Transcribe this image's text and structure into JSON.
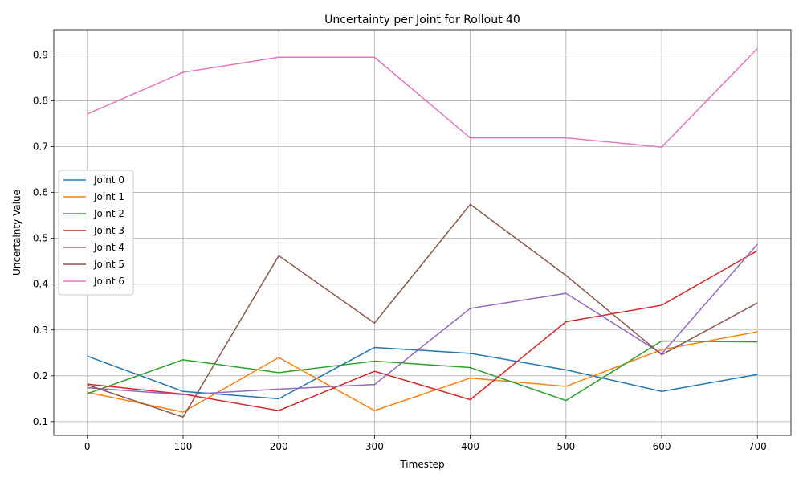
{
  "chart_data": {
    "type": "line",
    "title": "Uncertainty per Joint for Rollout 40",
    "xlabel": "Timestep",
    "ylabel": "Uncertainty Value",
    "x": [
      0,
      100,
      200,
      300,
      400,
      500,
      600,
      700
    ],
    "xlim": [
      -35,
      735
    ],
    "ylim": [
      0.07,
      0.955
    ],
    "xticks": [
      0,
      100,
      200,
      300,
      400,
      500,
      600,
      700
    ],
    "yticks": [
      0.1,
      0.2,
      0.3,
      0.4,
      0.5,
      0.6,
      0.7,
      0.8,
      0.9
    ],
    "ytick_labels": [
      "0.1",
      "0.2",
      "0.3",
      "0.4",
      "0.5",
      "0.6",
      "0.7",
      "0.8",
      "0.9"
    ],
    "grid": true,
    "legend_position": "center-left",
    "series": [
      {
        "name": "Joint 0",
        "color": "#1f77b4",
        "values": [
          0.243,
          0.166,
          0.15,
          0.262,
          0.249,
          0.213,
          0.166,
          0.203
        ]
      },
      {
        "name": "Joint 1",
        "color": "#ff7f0e",
        "values": [
          0.164,
          0.121,
          0.24,
          0.124,
          0.195,
          0.177,
          0.257,
          0.296
        ]
      },
      {
        "name": "Joint 2",
        "color": "#2ca02c",
        "values": [
          0.161,
          0.235,
          0.207,
          0.232,
          0.218,
          0.146,
          0.276,
          0.274
        ]
      },
      {
        "name": "Joint 3",
        "color": "#d62728",
        "values": [
          0.182,
          0.16,
          0.124,
          0.21,
          0.148,
          0.318,
          0.354,
          0.473
        ]
      },
      {
        "name": "Joint 4",
        "color": "#9467bd",
        "values": [
          0.174,
          0.159,
          0.171,
          0.181,
          0.347,
          0.38,
          0.248,
          0.487
        ]
      },
      {
        "name": "Joint 5",
        "color": "#8c564b",
        "values": [
          0.18,
          0.11,
          0.462,
          0.315,
          0.574,
          0.419,
          0.246,
          0.359
        ]
      },
      {
        "name": "Joint 6",
        "color": "#e377c2",
        "values": [
          0.771,
          0.862,
          0.895,
          0.895,
          0.719,
          0.719,
          0.699,
          0.914
        ]
      }
    ]
  }
}
